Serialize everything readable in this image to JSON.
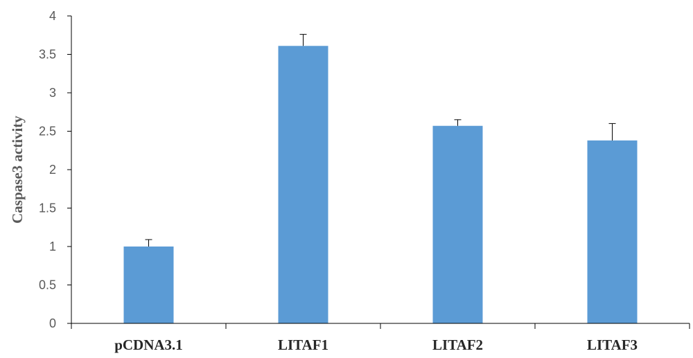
{
  "chart_data": {
    "type": "bar",
    "title": "",
    "xlabel": "",
    "ylabel": "Caspase3 activity",
    "categories": [
      "pCDNA3.1",
      "LITAF1",
      "LITAF2",
      "LITAF3"
    ],
    "values": [
      1.0,
      3.61,
      2.57,
      2.38
    ],
    "error_bars": [
      0.09,
      0.15,
      0.08,
      0.22
    ],
    "ylim": [
      0,
      4
    ],
    "yticks": [
      "0",
      "0.5",
      "1",
      "1.5",
      "2",
      "2.5",
      "3",
      "3.5",
      "4"
    ],
    "grid": false,
    "legend": "none",
    "bar_color": "#5B9BD5",
    "axis_color": "#000000"
  }
}
